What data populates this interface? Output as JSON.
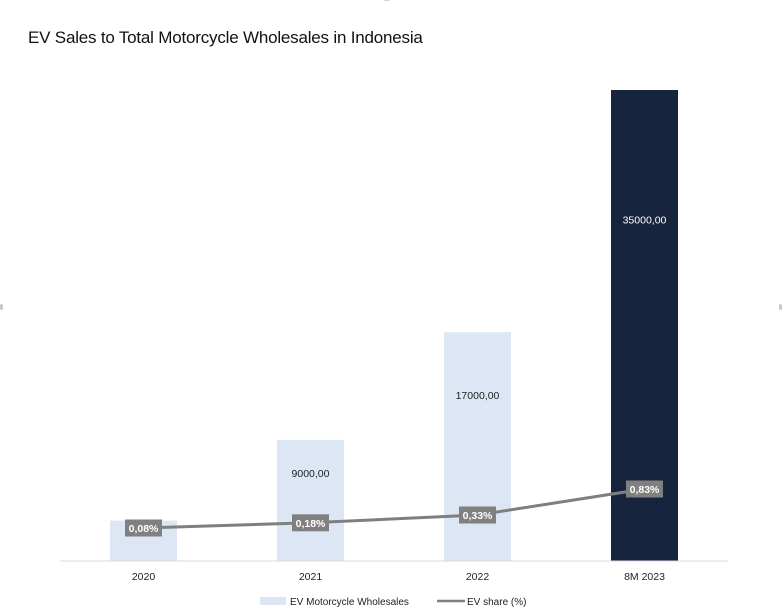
{
  "chart_data": {
    "type": "bar",
    "title": "EV Sales to Total Motorcycle Wholesales in Indonesia",
    "categories": [
      "2020",
      "2021",
      "2022",
      "8M 2023"
    ],
    "series": [
      {
        "name": "EV Motorcycle Wholesales",
        "kind": "bar",
        "values": [
          3000,
          9000,
          17000,
          35000
        ],
        "data_labels": [
          "",
          "9000,00",
          "17000,00",
          "35000,00"
        ],
        "colors": [
          "#dce6f4",
          "#dce6f4",
          "#dce6f4",
          "#16243d"
        ],
        "label_colors": [
          "#222222",
          "#222222",
          "#222222",
          "#ffffff"
        ]
      },
      {
        "name": "EV share (%)",
        "kind": "line",
        "values": [
          0.08,
          0.18,
          0.33,
          0.83
        ],
        "data_labels": [
          "0,08%",
          "0,18%",
          "0,33%",
          "0,83%"
        ],
        "color": "#7f7f7f"
      }
    ],
    "xlabel": "",
    "ylabel": "",
    "ylim": [
      0,
      35000
    ],
    "grid": false,
    "legend": "bottom-center"
  }
}
